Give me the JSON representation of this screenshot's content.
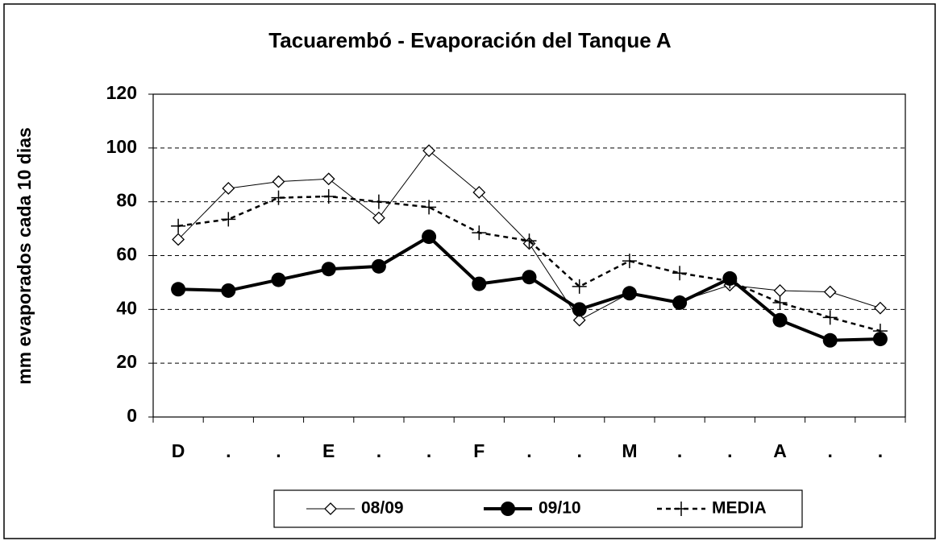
{
  "chart_data": {
    "type": "line",
    "title": "Tacuarembó - Evaporación del Tanque A",
    "y_label": "mm evaporados cada 10 dias",
    "categories": [
      "D",
      ".",
      ".",
      "E",
      ".",
      ".",
      "F",
      ".",
      ".",
      "M",
      ".",
      ".",
      "A",
      ".",
      "."
    ],
    "series": [
      {
        "name": "08/09",
        "color": "#000000",
        "marker": "diamond",
        "line_width": 1,
        "dashed": false,
        "values": [
          66,
          85,
          87.5,
          88.5,
          74,
          99,
          83.5,
          64.5,
          36,
          46,
          43,
          49,
          47,
          46.5,
          40.5
        ]
      },
      {
        "name": "09/10",
        "color": "#000000",
        "marker": "circle",
        "line_width": 4,
        "dashed": false,
        "values": [
          47.5,
          47,
          51,
          55,
          56,
          67,
          49.5,
          52,
          40,
          46,
          42.5,
          51.5,
          36,
          28.5,
          29
        ]
      },
      {
        "name": "MEDIA",
        "color": "#000000",
        "marker": "plus",
        "line_width": 2.5,
        "dashed": true,
        "values": [
          71,
          73.5,
          81.5,
          82,
          80,
          78,
          68.5,
          65.5,
          48.5,
          58,
          53.5,
          50.5,
          42.5,
          37,
          32
        ]
      }
    ],
    "ylim": [
      0,
      120
    ],
    "yticks": [
      0,
      20,
      40,
      60,
      80,
      100,
      120
    ],
    "grid": true
  }
}
